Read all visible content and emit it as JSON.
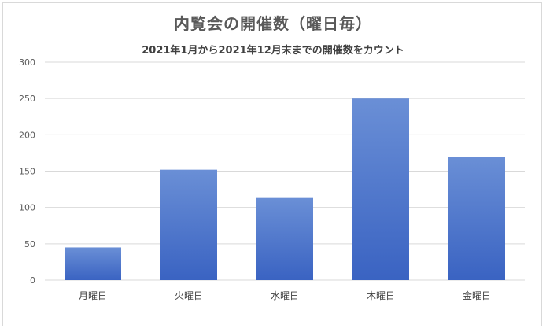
{
  "chart_data": {
    "type": "bar",
    "title": "内覧会の開催数（曜日毎）",
    "subtitle": "2021年1月から2021年12月末までの開催数をカウント",
    "categories": [
      "月曜日",
      "火曜日",
      "水曜日",
      "木曜日",
      "金曜日"
    ],
    "values": [
      45,
      152,
      113,
      250,
      170
    ],
    "xlabel": "",
    "ylabel": "",
    "ylim": [
      0,
      300
    ],
    "yticks": [
      0,
      50,
      100,
      150,
      200,
      250,
      300
    ],
    "grid": true,
    "legend": "none",
    "bar_color_top": "#6a8fd6",
    "bar_color_bottom": "#3a63c2",
    "grid_color": "#d9d9d9"
  }
}
